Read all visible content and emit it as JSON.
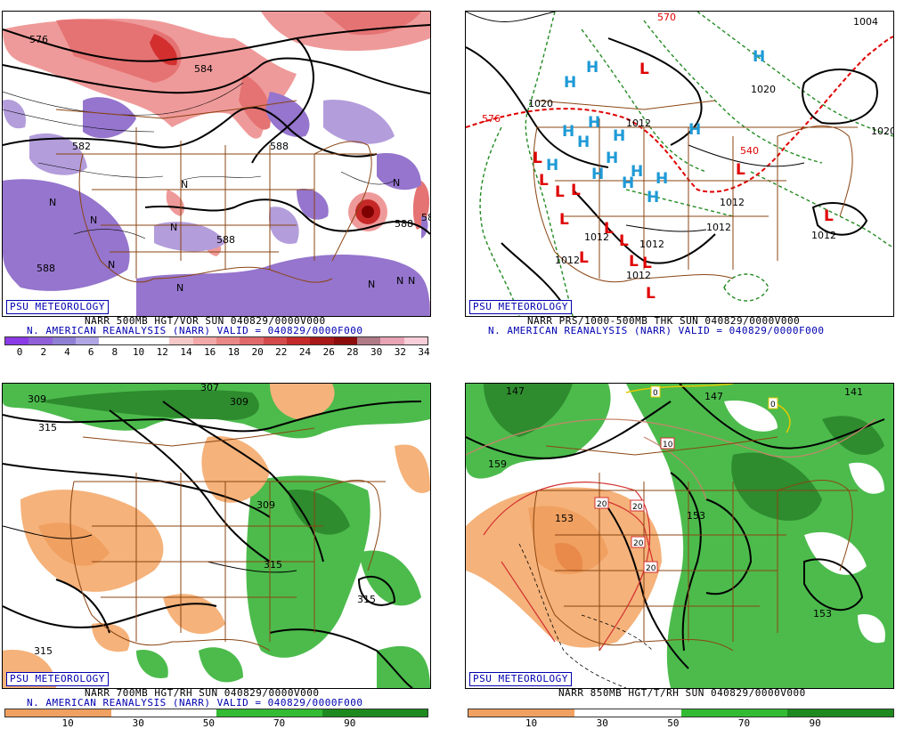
{
  "badge_text": "PSU METEOROLOGY",
  "panels": {
    "tl": {
      "caption1": "NARR 500MB HGT/VOR SUN 040829/0000V000",
      "caption2": "N. AMERICAN REANALYSIS (NARR) VALID = 040829/0000F000",
      "contour_labels": [
        "576",
        "582",
        "584",
        "588",
        "588",
        "588",
        "588",
        "588"
      ],
      "n_markers": [
        "N",
        "N",
        "N",
        "N",
        "N",
        "N",
        "N",
        "N",
        "N",
        "N"
      ],
      "colorbar": {
        "ticks": [
          "0",
          "2",
          "4",
          "6",
          "8",
          "10",
          "12",
          "14",
          "16",
          "18",
          "20",
          "22",
          "24",
          "26",
          "28",
          "30",
          "32",
          "34"
        ],
        "colors": [
          "#8a3be6",
          "#9060d8",
          "#8f7fd2",
          "#b0a6e4",
          "#ffffff",
          "#ffffff",
          "#ffffff",
          "#f6c8c8",
          "#f2a8a8",
          "#ea8888",
          "#e06a6a",
          "#d44a4a",
          "#c42a2a",
          "#a81818",
          "#8c0c0c",
          "#b07a86",
          "#e8a4b4",
          "#f8cfd8"
        ]
      }
    },
    "tr": {
      "caption1": "NARR PRS/1000-500MB THK SUN 040829/0000V000",
      "caption2": "N. AMERICAN REANALYSIS (NARR) VALID = 040829/0000F000",
      "contour_labels": [
        "1004",
        "1020",
        "1020",
        "1020",
        "1012",
        "1012",
        "1012",
        "1012",
        "1012",
        "1012",
        "1012",
        "576",
        "540",
        "570",
        "1012"
      ],
      "h_markers": [
        "H",
        "H",
        "H",
        "H",
        "H",
        "H",
        "H",
        "H",
        "H",
        "H",
        "H",
        "H",
        "H",
        "H",
        "H"
      ],
      "l_markers": [
        "L",
        "L",
        "L",
        "L",
        "L",
        "L",
        "L",
        "L",
        "L",
        "L",
        "L",
        "L",
        "L",
        "L"
      ]
    },
    "bl": {
      "caption1": "NARR 700MB HGT/RH SUN 040829/0000V000",
      "caption2": "N. AMERICAN REANALYSIS (NARR) VALID = 040829/0000F000",
      "contour_labels": [
        "309",
        "315",
        "309",
        "315",
        "315",
        "315",
        "309",
        "307"
      ],
      "colorbar": {
        "ticks": [
          "10",
          "30",
          "50",
          "70",
          "90"
        ],
        "colors": [
          "#f0a060",
          "#ffffff",
          "#33bb33",
          "#1e8a1e"
        ]
      }
    },
    "br": {
      "caption1": "NARR 850MB HGT/T/RH SUN 040829/0000V000",
      "contour_labels": [
        "147",
        "147",
        "141",
        "159",
        "153",
        "153",
        "153",
        "0",
        "0",
        "10",
        "20",
        "20",
        "20",
        "20"
      ],
      "colorbar": {
        "ticks": [
          "10",
          "30",
          "50",
          "70",
          "90"
        ],
        "colors": [
          "#f0a060",
          "#ffffff",
          "#33bb33",
          "#1e8a1e"
        ]
      }
    }
  }
}
